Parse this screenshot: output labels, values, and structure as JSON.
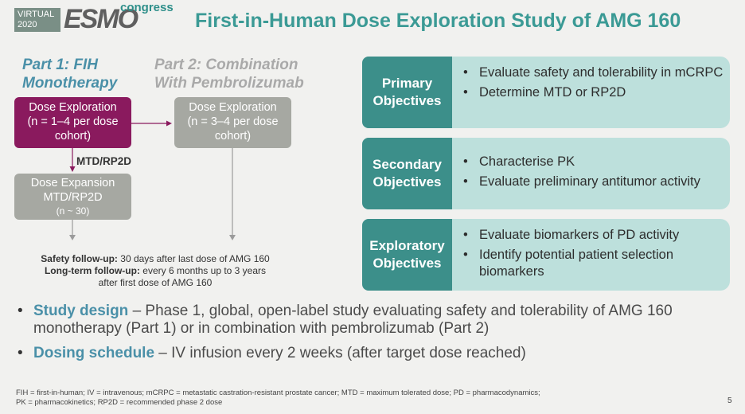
{
  "logo": {
    "virtual_line1": "VIRTUAL",
    "virtual_line2": "2020",
    "esmo": "ESMO",
    "congress": "congress"
  },
  "title": "First-in-Human Dose Exploration Study of AMG 160",
  "part1": {
    "heading_line1": "Part 1: FIH",
    "heading_line2": "Monotherapy",
    "dose_exploration": [
      "Dose Exploration",
      "(n = 1–4 per dose",
      "cohort)"
    ],
    "mtd_label": "MTD/RP2D",
    "dose_expansion": [
      "Dose Expansion",
      "MTD/RP2D",
      "(n ~ 30)"
    ]
  },
  "part2": {
    "heading_line1": "Part 2: Combination",
    "heading_line2": "With Pembrolizumab",
    "dose_exploration": [
      "Dose Exploration",
      "(n = 3–4 per dose",
      "cohort)"
    ]
  },
  "followup": {
    "safety_label": "Safety follow-up:",
    "safety_text": " 30 days after last dose of AMG 160",
    "longterm_label": "Long-term follow-up:",
    "longterm_text": " every 6 months up to 3 years",
    "longterm_text2": "after first dose of AMG 160"
  },
  "objectives": [
    {
      "label_line1": "Primary",
      "label_line2": "Objectives",
      "items": [
        "Evaluate safety and tolerability in mCRPC",
        "Determine MTD or RP2D"
      ]
    },
    {
      "label_line1": "Secondary",
      "label_line2": "Objectives",
      "items": [
        "Characterise PK",
        "Evaluate preliminary antitumor activity"
      ]
    },
    {
      "label_line1": "Exploratory",
      "label_line2": "Objectives",
      "items": [
        "Evaluate biomarkers of PD activity",
        "Identify potential patient selection biomarkers"
      ]
    }
  ],
  "bullets": [
    {
      "highlight": "Study design",
      "text": " – Phase 1, global, open-label study evaluating safety and tolerability of AMG 160 monotherapy (Part 1) or in combination with pembrolizumab (Part 2)"
    },
    {
      "highlight": "Dosing schedule",
      "text": " – IV infusion every 2 weeks (after target dose reached)"
    }
  ],
  "footnote_line1": "FIH = first-in-human; IV = intravenous; mCRPC = metastatic castration-resistant prostate cancer; MTD = maximum tolerated dose; PD = pharmacodynamics;",
  "footnote_line2": "PK = pharmacokinetics; RP2D = recommended phase 2 dose",
  "page_number": "5",
  "colors": {
    "teal_title": "#3b9a95",
    "part1_blue": "#4a90a8",
    "purple_box": "#8a1a5e",
    "grey_box": "#a6a8a2",
    "objective_dark": "#3c8f8a",
    "objective_light": "#bde0dc"
  }
}
